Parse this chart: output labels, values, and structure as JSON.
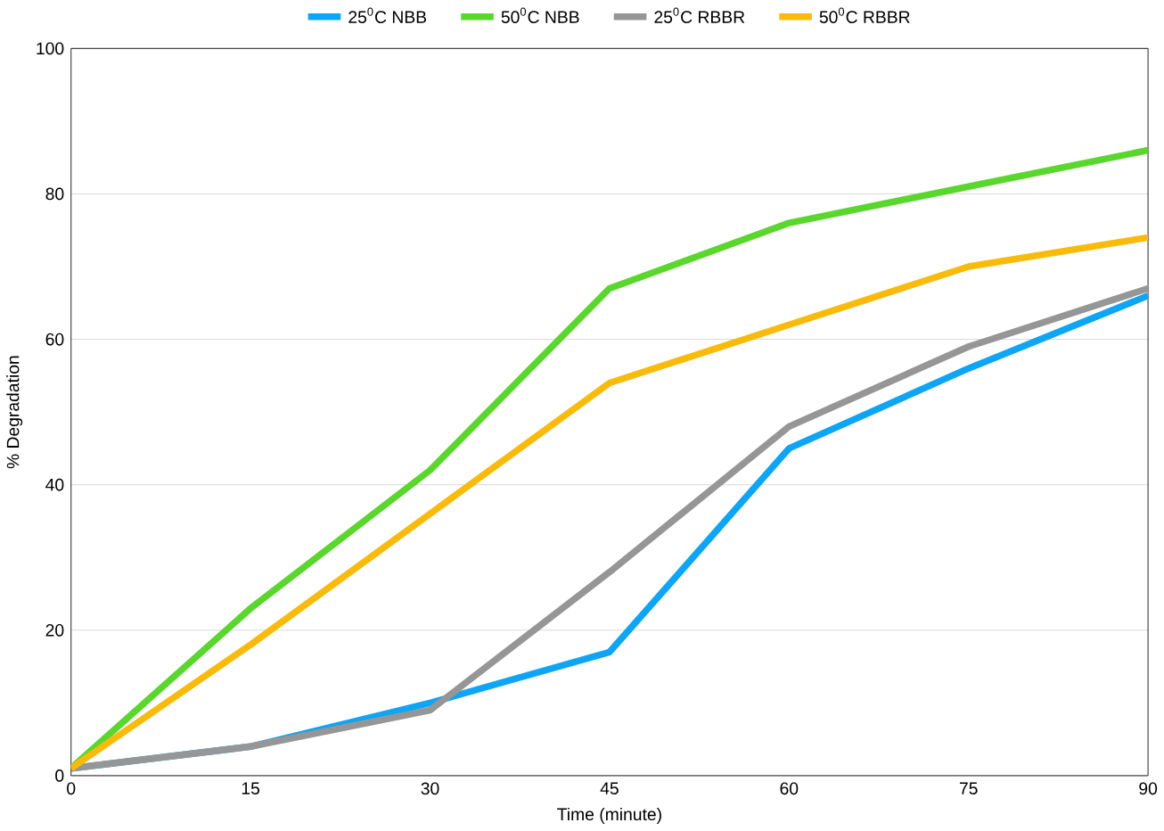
{
  "chart_data": {
    "type": "line",
    "xlabel": "Time (minute)",
    "ylabel": "% Degradation",
    "x": [
      0,
      15,
      30,
      45,
      60,
      75,
      90
    ],
    "series": [
      {
        "name": "25$^{0}$C NBB",
        "color": "#0fa5f5",
        "values": [
          1,
          4,
          10,
          17,
          45,
          56,
          66
        ]
      },
      {
        "name": "50$^{0}$C NBB",
        "color": "#5ad62e",
        "values": [
          1,
          23,
          42,
          67,
          76,
          81,
          86
        ]
      },
      {
        "name": "25$^{0}$C RBBR",
        "color": "#969696",
        "values": [
          1,
          4,
          9,
          28,
          48,
          59,
          67
        ]
      },
      {
        "name": "50$^{0}$C RBBR",
        "color": "#f8bb0c",
        "values": [
          1,
          18,
          36,
          54,
          62,
          70,
          74
        ]
      }
    ],
    "xlim": [
      0,
      90
    ],
    "xticks": [
      0,
      15,
      30,
      45,
      60,
      75,
      90
    ],
    "ylim": [
      0,
      100
    ],
    "yticks": [
      0,
      20,
      40,
      60,
      80,
      100
    ],
    "grid": "y",
    "legend": "top",
    "marker": "none",
    "line_style": "solid"
  }
}
